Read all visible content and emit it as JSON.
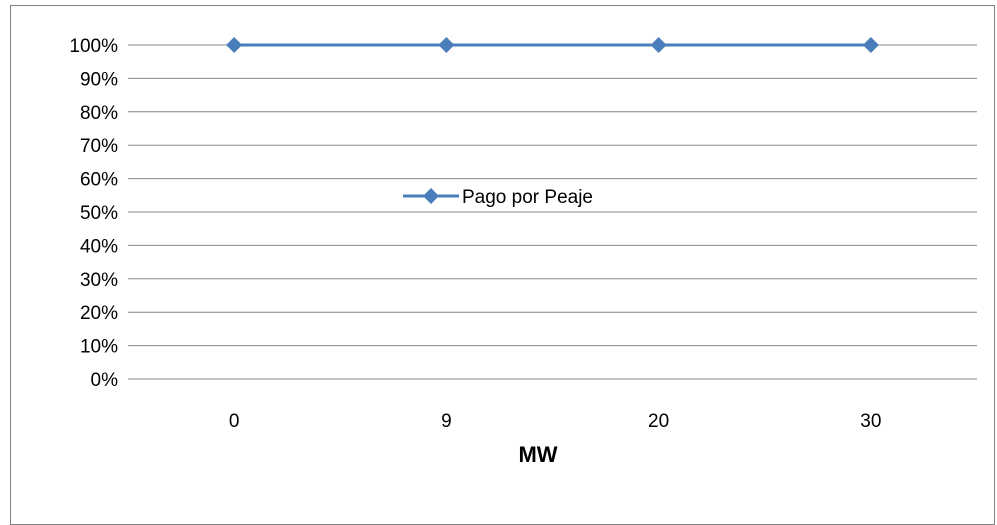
{
  "chart_data": {
    "type": "line",
    "categories": [
      "0",
      "9",
      "20",
      "30"
    ],
    "series": [
      {
        "name": "Pago por Peaje",
        "values": [
          100,
          100,
          100,
          100
        ],
        "color": "#4a7ebb"
      }
    ],
    "y_tick_labels": [
      "0%",
      "10%",
      "20%",
      "30%",
      "40%",
      "50%",
      "60%",
      "70%",
      "80%",
      "90%",
      "100%"
    ],
    "ylim": [
      0,
      100
    ],
    "xlabel": "MW",
    "grid": true,
    "legend_position": "center"
  }
}
